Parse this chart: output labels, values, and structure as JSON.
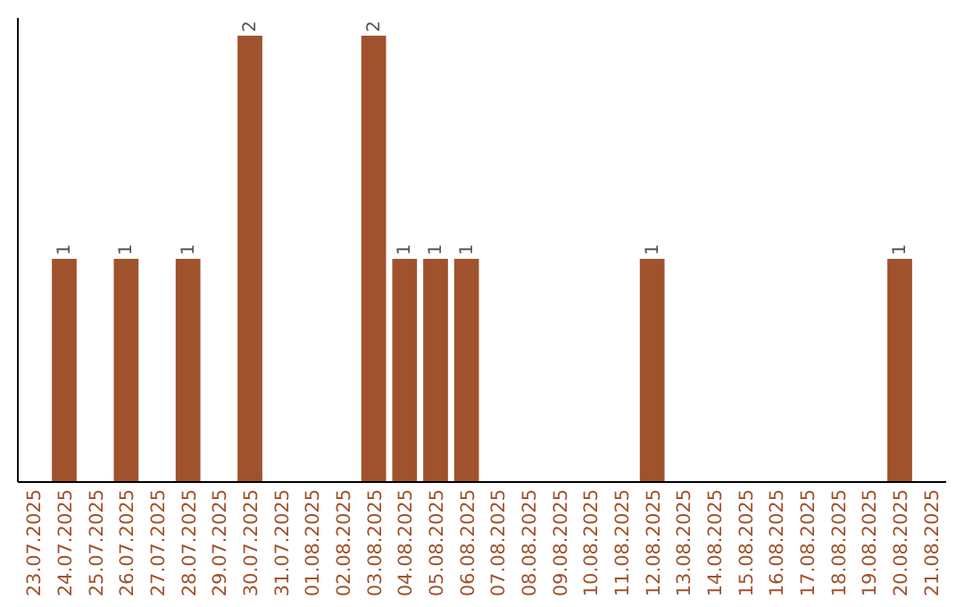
{
  "chart_data": {
    "type": "bar",
    "categories": [
      "23.07.2025",
      "24.07.2025",
      "25.07.2025",
      "26.07.2025",
      "27.07.2025",
      "28.07.2025",
      "29.07.2025",
      "30.07.2025",
      "31.07.2025",
      "01.08.2025",
      "02.08.2025",
      "03.08.2025",
      "04.08.2025",
      "05.08.2025",
      "06.08.2025",
      "07.08.2025",
      "08.08.2025",
      "09.08.2025",
      "10.08.2025",
      "11.08.2025",
      "12.08.2025",
      "13.08.2025",
      "14.08.2025",
      "15.08.2025",
      "16.08.2025",
      "17.08.2025",
      "18.08.2025",
      "19.08.2025",
      "20.08.2025",
      "21.08.2025"
    ],
    "values": [
      null,
      1,
      null,
      1,
      null,
      1,
      null,
      2,
      null,
      null,
      null,
      2,
      1,
      1,
      1,
      null,
      null,
      null,
      null,
      null,
      1,
      null,
      null,
      null,
      null,
      null,
      null,
      null,
      1,
      null
    ],
    "color": "#a0522d",
    "data_labels": true,
    "tick_labels": "x"
  }
}
